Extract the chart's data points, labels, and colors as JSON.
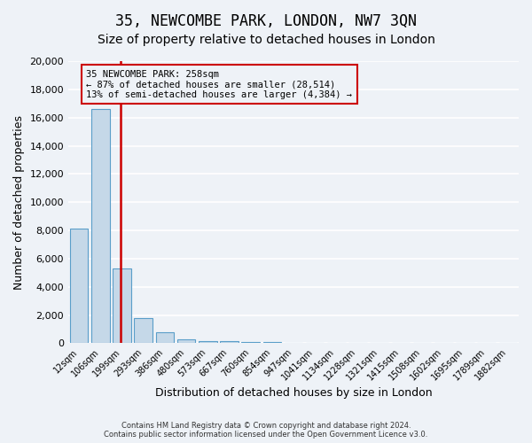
{
  "title": "35, NEWCOMBE PARK, LONDON, NW7 3QN",
  "subtitle": "Size of property relative to detached houses in London",
  "xlabel": "Distribution of detached houses by size in London",
  "ylabel": "Number of detached properties",
  "bar_labels": [
    "12sqm",
    "106sqm",
    "199sqm",
    "293sqm",
    "386sqm",
    "480sqm",
    "573sqm",
    "667sqm",
    "760sqm",
    "854sqm",
    "947sqm",
    "1041sqm",
    "1134sqm",
    "1228sqm",
    "1321sqm",
    "1415sqm",
    "1508sqm",
    "1602sqm",
    "1695sqm",
    "1789sqm",
    "1882sqm"
  ],
  "bar_values": [
    8100,
    16600,
    5300,
    1750,
    750,
    300,
    175,
    175,
    100,
    75,
    0,
    0,
    0,
    0,
    0,
    0,
    0,
    0,
    0,
    0,
    0
  ],
  "bar_color": "#c5d8e8",
  "bar_edge_color": "#5a9ec9",
  "ylim": [
    0,
    20000
  ],
  "yticks": [
    0,
    2000,
    4000,
    6000,
    8000,
    10000,
    12000,
    14000,
    16000,
    18000,
    20000
  ],
  "vline_x": 1.925,
  "vline_color": "#cc0000",
  "annotation_title": "35 NEWCOMBE PARK: 258sqm",
  "annotation_line1": "← 87% of detached houses are smaller (28,514)",
  "annotation_line2": "13% of semi-detached houses are larger (4,384) →",
  "annotation_box_color": "#cc0000",
  "footer_line1": "Contains HM Land Registry data © Crown copyright and database right 2024.",
  "footer_line2": "Contains public sector information licensed under the Open Government Licence v3.0.",
  "background_color": "#eef2f7",
  "grid_color": "#ffffff",
  "title_fontsize": 12,
  "subtitle_fontsize": 10,
  "axis_label_fontsize": 9
}
